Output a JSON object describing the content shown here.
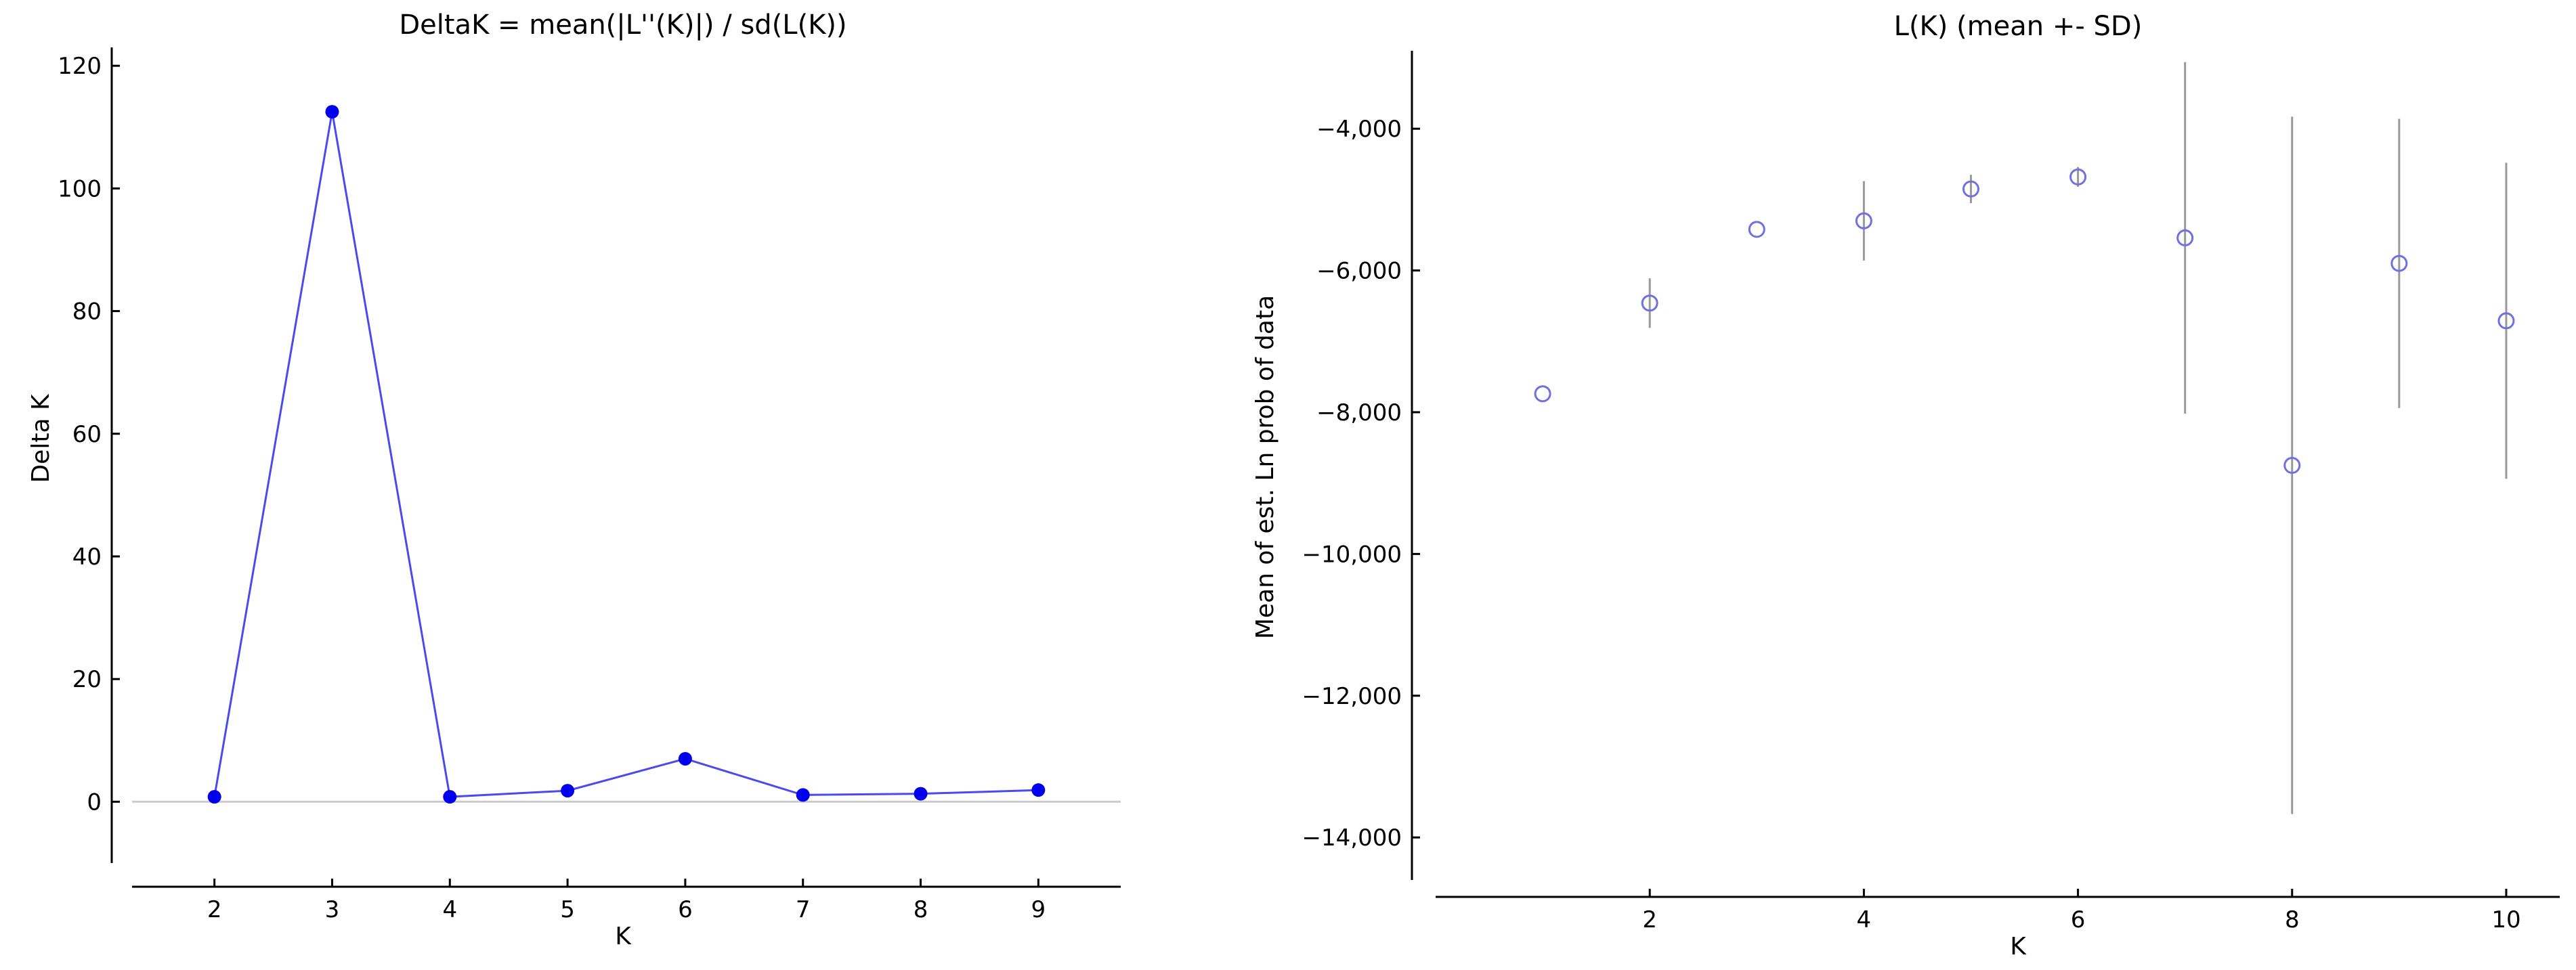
{
  "colors": {
    "line": "#4a4af0",
    "point": "#0000ee",
    "open_marker": "#7070e0",
    "errorbar": "#999999",
    "zero_line": "#cccccc",
    "axis": "#000000"
  },
  "chart_data": [
    {
      "type": "line",
      "title": "DeltaK = mean(|L''(K)|) / sd(L(K))",
      "xlabel": "K",
      "ylabel": "Delta K",
      "xlim": [
        1.3,
        9.7
      ],
      "ylim": [
        -10,
        123
      ],
      "x_ticks": [
        2,
        3,
        4,
        5,
        6,
        7,
        8,
        9
      ],
      "x_tick_labels": [
        "2",
        "3",
        "4",
        "5",
        "6",
        "7",
        "8",
        "9"
      ],
      "y_ticks": [
        0,
        20,
        40,
        60,
        80,
        100,
        120
      ],
      "y_tick_labels": [
        "0",
        "20",
        "40",
        "60",
        "80",
        "100",
        "120"
      ],
      "zero_line": true,
      "grid": false,
      "series": [
        {
          "x": [
            2,
            3,
            4,
            5,
            6,
            7,
            8,
            9
          ],
          "values": [
            0.8,
            112.5,
            0.8,
            1.8,
            7.0,
            1.1,
            1.3,
            1.9
          ]
        }
      ]
    },
    {
      "type": "scatter",
      "title": "L(K) (mean +- SD)",
      "xlabel": "K",
      "ylabel": "Mean of est. Ln prob of data",
      "xlim": [
        0.0,
        10.5
      ],
      "ylim": [
        -14600,
        -2900
      ],
      "x_ticks": [
        2,
        4,
        6,
        8,
        10
      ],
      "x_tick_labels": [
        "2",
        "4",
        "6",
        "8",
        "10"
      ],
      "y_ticks": [
        -4000,
        -6000,
        -8000,
        -10000,
        -12000,
        -14000
      ],
      "y_tick_labels": [
        "−4,000",
        "−6,000",
        "−8,000",
        "−10,000",
        "−12,000",
        "−14,000"
      ],
      "grid": false,
      "series": [
        {
          "x": [
            1,
            2,
            3,
            4,
            5,
            6,
            7,
            8,
            9,
            10
          ],
          "values": [
            -7740,
            -6460,
            -5420,
            -5300,
            -4850,
            -4680,
            -5540,
            -8750,
            -5900,
            -6710
          ],
          "sd": [
            0,
            350,
            0,
            560,
            200,
            140,
            2480,
            4920,
            2040,
            2230
          ]
        }
      ]
    }
  ]
}
